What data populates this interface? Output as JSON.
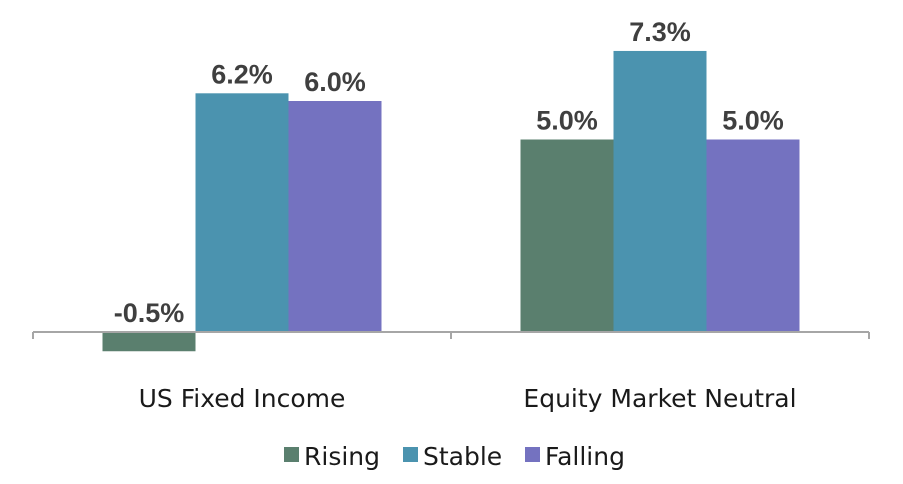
{
  "chart_data": {
    "type": "bar",
    "categories": [
      "US Fixed Income",
      "Equity Market Neutral"
    ],
    "series": [
      {
        "name": "Rising",
        "values": [
          -0.5,
          5.0
        ],
        "labels": [
          "-0.5%",
          "5.0%"
        ],
        "color": "#5a7f6e"
      },
      {
        "name": "Stable",
        "values": [
          6.2,
          7.3
        ],
        "labels": [
          "6.2%",
          "7.3%"
        ],
        "color": "#4b93af"
      },
      {
        "name": "Falling",
        "values": [
          6.0,
          5.0
        ],
        "labels": [
          "6.0%",
          "5.0%"
        ],
        "color": "#7472c0"
      }
    ],
    "ylim": [
      -0.5,
      7.3
    ],
    "grid": false,
    "legend_position": "bottom",
    "value_format": "percent"
  }
}
